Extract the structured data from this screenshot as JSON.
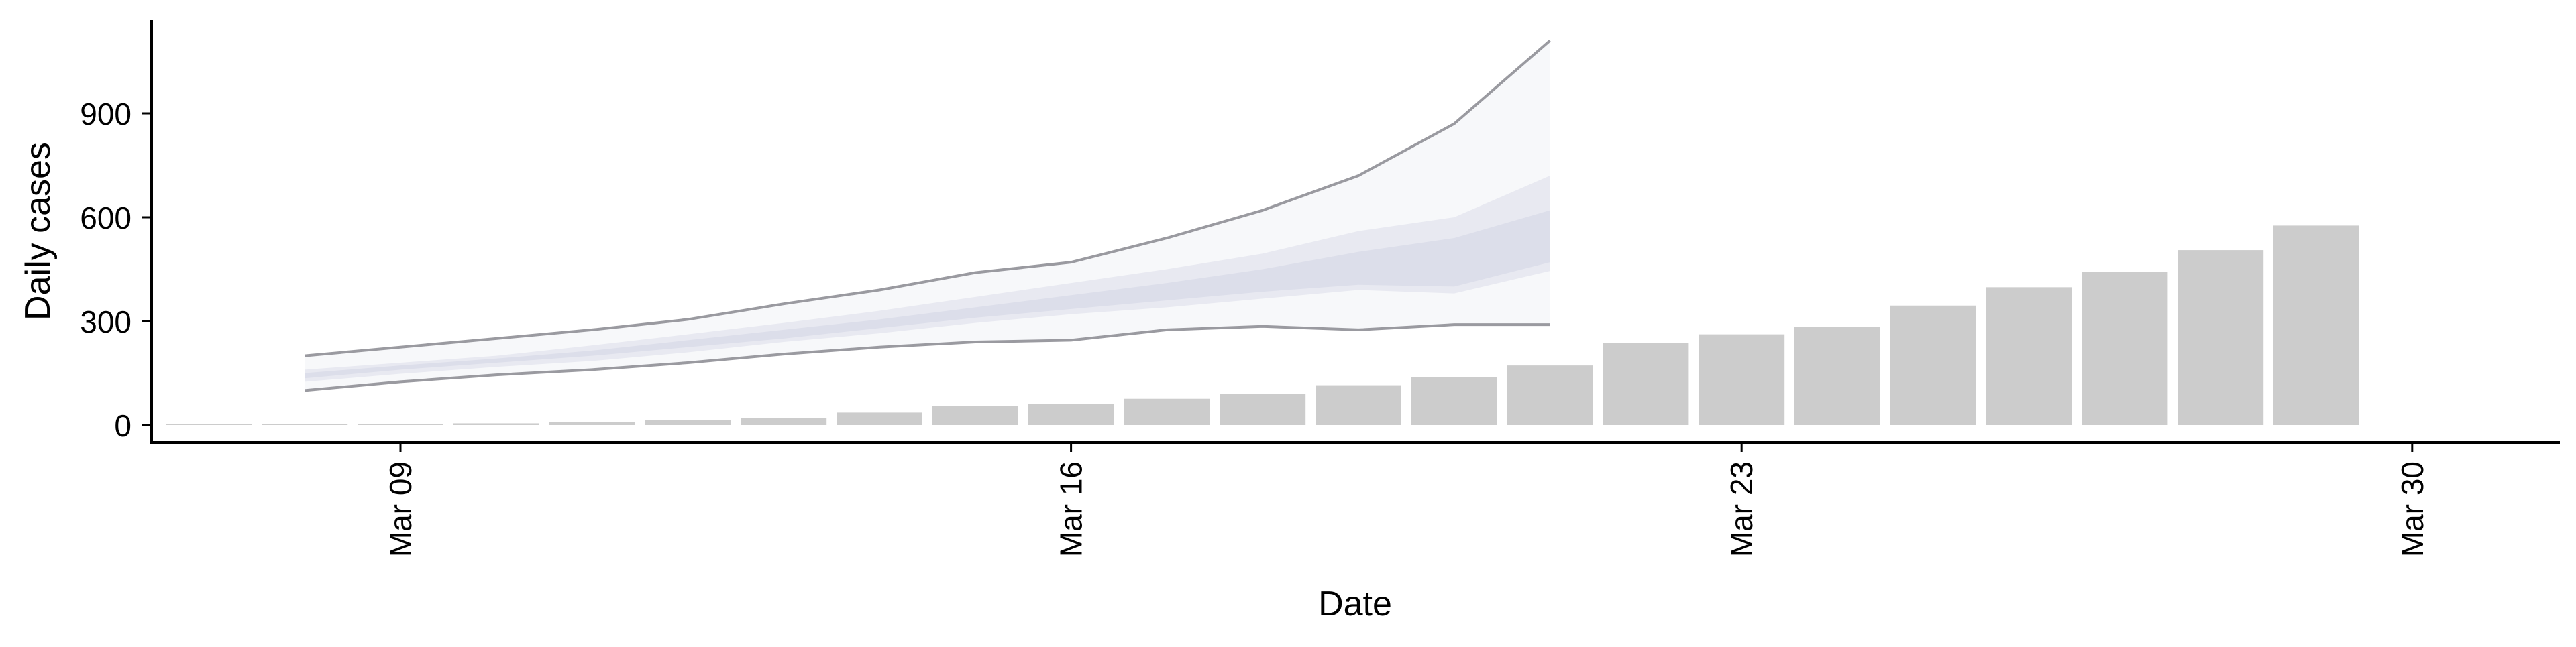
{
  "chart_data": {
    "type": "bar",
    "title": "",
    "xlabel": "Date",
    "ylabel": "Daily cases",
    "ylim": [
      0,
      1150
    ],
    "yticks": [
      0,
      300,
      600,
      900
    ],
    "ytick_labels": [
      "0",
      "300",
      "600",
      "900"
    ],
    "xticks": [
      "2020-03-09",
      "2020-03-16",
      "2020-03-23",
      "2020-03-30"
    ],
    "xtick_labels": [
      "Mar 09",
      "Mar 16",
      "Mar 23",
      "Mar 30"
    ],
    "grid": false,
    "legend": "none",
    "series": [
      {
        "type": "bar",
        "dates": [
          "2020-03-07",
          "2020-03-08",
          "2020-03-09",
          "2020-03-10",
          "2020-03-11",
          "2020-03-12",
          "2020-03-13",
          "2020-03-14",
          "2020-03-15",
          "2020-03-16",
          "2020-03-17",
          "2020-03-18",
          "2020-03-19",
          "2020-03-20",
          "2020-03-21",
          "2020-03-22",
          "2020-03-23",
          "2020-03-24",
          "2020-03-25",
          "2020-03-26",
          "2020-03-27",
          "2020-03-28",
          "2020-03-29",
          "2020-03-30"
        ],
        "values": [
          2,
          2,
          3,
          5,
          8,
          14,
          20,
          36,
          55,
          60,
          76,
          90,
          115,
          138,
          172,
          237,
          262,
          283,
          345,
          398,
          443,
          505,
          576,
          0
        ],
        "color": "#cccccc"
      },
      {
        "type": "forecast-band",
        "dates": [
          "2020-03-08",
          "2020-03-09",
          "2020-03-10",
          "2020-03-11",
          "2020-03-12",
          "2020-03-13",
          "2020-03-14",
          "2020-03-15",
          "2020-03-16",
          "2020-03-17",
          "2020-03-18",
          "2020-03-19",
          "2020-03-20",
          "2020-03-21"
        ],
        "outer_lower": [
          100,
          125,
          145,
          160,
          180,
          205,
          225,
          240,
          245,
          275,
          285,
          275,
          290,
          290
        ],
        "outer_upper": [
          200,
          225,
          250,
          275,
          305,
          350,
          390,
          440,
          470,
          540,
          620,
          720,
          870,
          1110
        ],
        "inner_lower": [
          125,
          148,
          168,
          185,
          210,
          240,
          265,
          295,
          320,
          340,
          365,
          390,
          380,
          445
        ],
        "inner_upper": [
          160,
          180,
          200,
          230,
          262,
          295,
          330,
          370,
          410,
          450,
          495,
          560,
          600,
          720
        ],
        "core_lower": [
          135,
          160,
          180,
          200,
          225,
          250,
          280,
          310,
          335,
          360,
          385,
          405,
          400,
          470
        ],
        "core_upper": [
          150,
          172,
          192,
          215,
          245,
          275,
          305,
          340,
          375,
          410,
          450,
          500,
          540,
          620
        ],
        "colors": {
          "outer": "#f7f8fa",
          "inner": "#e8e9f1",
          "core": "#dcdeea",
          "line": "#9a9aa0"
        }
      }
    ]
  }
}
